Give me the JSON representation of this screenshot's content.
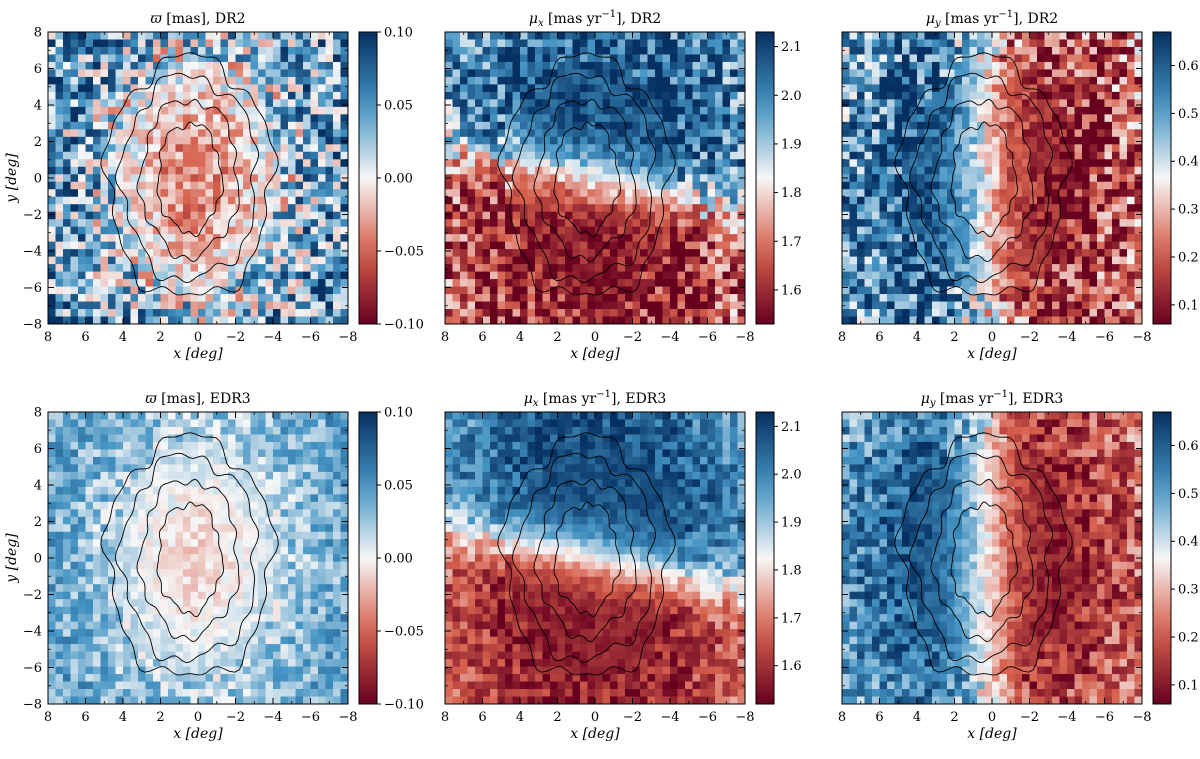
{
  "chart_data": [
    {
      "type": "heatmap",
      "title": "ϖ [mas], DR2",
      "title_symbol": "ϖ",
      "title_rest": " [mas], DR2",
      "xlabel": "x [deg]",
      "ylabel": "y [deg]",
      "xlim": [
        8,
        -8
      ],
      "ylim": [
        -8,
        8
      ],
      "x_ticks": [
        8,
        6,
        4,
        2,
        0,
        -2,
        -4,
        -6,
        -8
      ],
      "y_ticks": [
        8,
        6,
        4,
        2,
        0,
        -2,
        -4,
        -6,
        -8
      ],
      "x_tick_labels": [
        "8",
        "6",
        "4",
        "2",
        "0",
        "−2",
        "−4",
        "−6",
        "−8"
      ],
      "y_tick_labels": [
        "8",
        "6",
        "4",
        "2",
        "0",
        "−2",
        "−4",
        "−6",
        "−8"
      ],
      "colormap": "RdBu",
      "clim": [
        -0.1,
        0.1
      ],
      "colorbar_ticks": [
        0.1,
        0.05,
        0.0,
        -0.05,
        -0.1
      ],
      "colorbar_tick_labels": [
        "0.10",
        "0.05",
        "0.00",
        "−0.05",
        "−0.10"
      ],
      "pattern": "parallax",
      "center_value": -0.04,
      "outer_value": 0.06,
      "noise": 0.03
    },
    {
      "type": "heatmap",
      "title": "μx [mas yr−1], DR2",
      "title_symbol": "μ",
      "title_sub": "x",
      "title_rest": " [mas yr",
      "title_sup": "−1",
      "title_tail": "], DR2",
      "xlabel": "x [deg]",
      "xlim": [
        8,
        -8
      ],
      "ylim": [
        -8,
        8
      ],
      "x_ticks": [
        8,
        6,
        4,
        2,
        0,
        -2,
        -4,
        -6,
        -8
      ],
      "x_tick_labels": [
        "8",
        "6",
        "4",
        "2",
        "0",
        "−2",
        "−4",
        "−6",
        "−8"
      ],
      "colormap": "RdBu",
      "clim": [
        1.53,
        2.13
      ],
      "colorbar_ticks": [
        2.1,
        2.0,
        1.9,
        1.8,
        1.7,
        1.6
      ],
      "colorbar_tick_labels": [
        "2.1",
        "2.0",
        "1.9",
        "1.8",
        "1.7",
        "1.6"
      ],
      "pattern": "mux",
      "noise": 0.07
    },
    {
      "type": "heatmap",
      "title": "μy [mas yr−1], DR2",
      "title_symbol": "μ",
      "title_sub": "y",
      "title_rest": " [mas yr",
      "title_sup": "−1",
      "title_tail": "], DR2",
      "xlabel": "x [deg]",
      "xlim": [
        8,
        -8
      ],
      "ylim": [
        -8,
        8
      ],
      "x_ticks": [
        8,
        6,
        4,
        2,
        0,
        -2,
        -4,
        -6,
        -8
      ],
      "x_tick_labels": [
        "8",
        "6",
        "4",
        "2",
        "0",
        "−2",
        "−4",
        "−6",
        "−8"
      ],
      "colormap": "RdBu",
      "clim": [
        0.06,
        0.67
      ],
      "colorbar_ticks": [
        0.6,
        0.5,
        0.4,
        0.3,
        0.2,
        0.1
      ],
      "colorbar_tick_labels": [
        "0.6",
        "0.5",
        "0.4",
        "0.3",
        "0.2",
        "0.1"
      ],
      "pattern": "muy",
      "noise": 0.08
    },
    {
      "type": "heatmap",
      "title": "ϖ [mas], EDR3",
      "title_symbol": "ϖ",
      "title_rest": " [mas], EDR3",
      "xlabel": "x [deg]",
      "ylabel": "y [deg]",
      "xlim": [
        8,
        -8
      ],
      "ylim": [
        -8,
        8
      ],
      "x_ticks": [
        8,
        6,
        4,
        2,
        0,
        -2,
        -4,
        -6,
        -8
      ],
      "y_ticks": [
        8,
        6,
        4,
        2,
        0,
        -2,
        -4,
        -6,
        -8
      ],
      "x_tick_labels": [
        "8",
        "6",
        "4",
        "2",
        "0",
        "−2",
        "−4",
        "−6",
        "−8"
      ],
      "y_tick_labels": [
        "8",
        "6",
        "4",
        "2",
        "0",
        "−2",
        "−4",
        "−6",
        "−8"
      ],
      "colormap": "RdBu",
      "clim": [
        -0.1,
        0.1
      ],
      "colorbar_ticks": [
        0.1,
        0.05,
        0.0,
        -0.05,
        -0.1
      ],
      "colorbar_tick_labels": [
        "0.10",
        "0.05",
        "0.00",
        "−0.05",
        "−0.10"
      ],
      "pattern": "parallax",
      "center_value": -0.012,
      "outer_value": 0.045,
      "noise": 0.012
    },
    {
      "type": "heatmap",
      "title": "μx [mas yr−1], EDR3",
      "title_symbol": "μ",
      "title_sub": "x",
      "title_rest": " [mas yr",
      "title_sup": "−1",
      "title_tail": "], EDR3",
      "xlabel": "x [deg]",
      "xlim": [
        8,
        -8
      ],
      "ylim": [
        -8,
        8
      ],
      "x_ticks": [
        8,
        6,
        4,
        2,
        0,
        -2,
        -4,
        -6,
        -8
      ],
      "x_tick_labels": [
        "8",
        "6",
        "4",
        "2",
        "0",
        "−2",
        "−4",
        "−6",
        "−8"
      ],
      "colormap": "RdBu",
      "clim": [
        1.52,
        2.13
      ],
      "colorbar_ticks": [
        2.1,
        2.0,
        1.9,
        1.8,
        1.7,
        1.6
      ],
      "colorbar_tick_labels": [
        "2.1",
        "2.0",
        "1.9",
        "1.8",
        "1.7",
        "1.6"
      ],
      "pattern": "mux",
      "noise": 0.04
    },
    {
      "type": "heatmap",
      "title": "μy [mas yr−1], EDR3",
      "title_symbol": "μ",
      "title_sub": "y",
      "title_rest": " [mas yr",
      "title_sup": "−1",
      "title_tail": "], EDR3",
      "xlabel": "x [deg]",
      "xlim": [
        8,
        -8
      ],
      "ylim": [
        -8,
        8
      ],
      "x_ticks": [
        8,
        6,
        4,
        2,
        0,
        -2,
        -4,
        -6,
        -8
      ],
      "x_tick_labels": [
        "8",
        "6",
        "4",
        "2",
        "0",
        "−2",
        "−4",
        "−6",
        "−8"
      ],
      "colormap": "RdBu",
      "clim": [
        0.06,
        0.67
      ],
      "colorbar_ticks": [
        0.6,
        0.5,
        0.4,
        0.3,
        0.2,
        0.1
      ],
      "colorbar_tick_labels": [
        "0.6",
        "0.5",
        "0.4",
        "0.3",
        "0.2",
        "0.1"
      ],
      "pattern": "muy",
      "noise": 0.05
    }
  ],
  "contour_levels": [
    {
      "rx": 4.4,
      "ry": 6.6
    },
    {
      "rx": 3.6,
      "ry": 5.6
    },
    {
      "rx": 2.6,
      "ry": 4.3
    },
    {
      "rx": 1.7,
      "ry": 3.0
    }
  ],
  "colors": {
    "red_dark": "#67001f",
    "red": "#d6604d",
    "white": "#f7f7f7",
    "blue": "#4393c3",
    "blue_dark": "#053061",
    "contour": "#000000"
  }
}
